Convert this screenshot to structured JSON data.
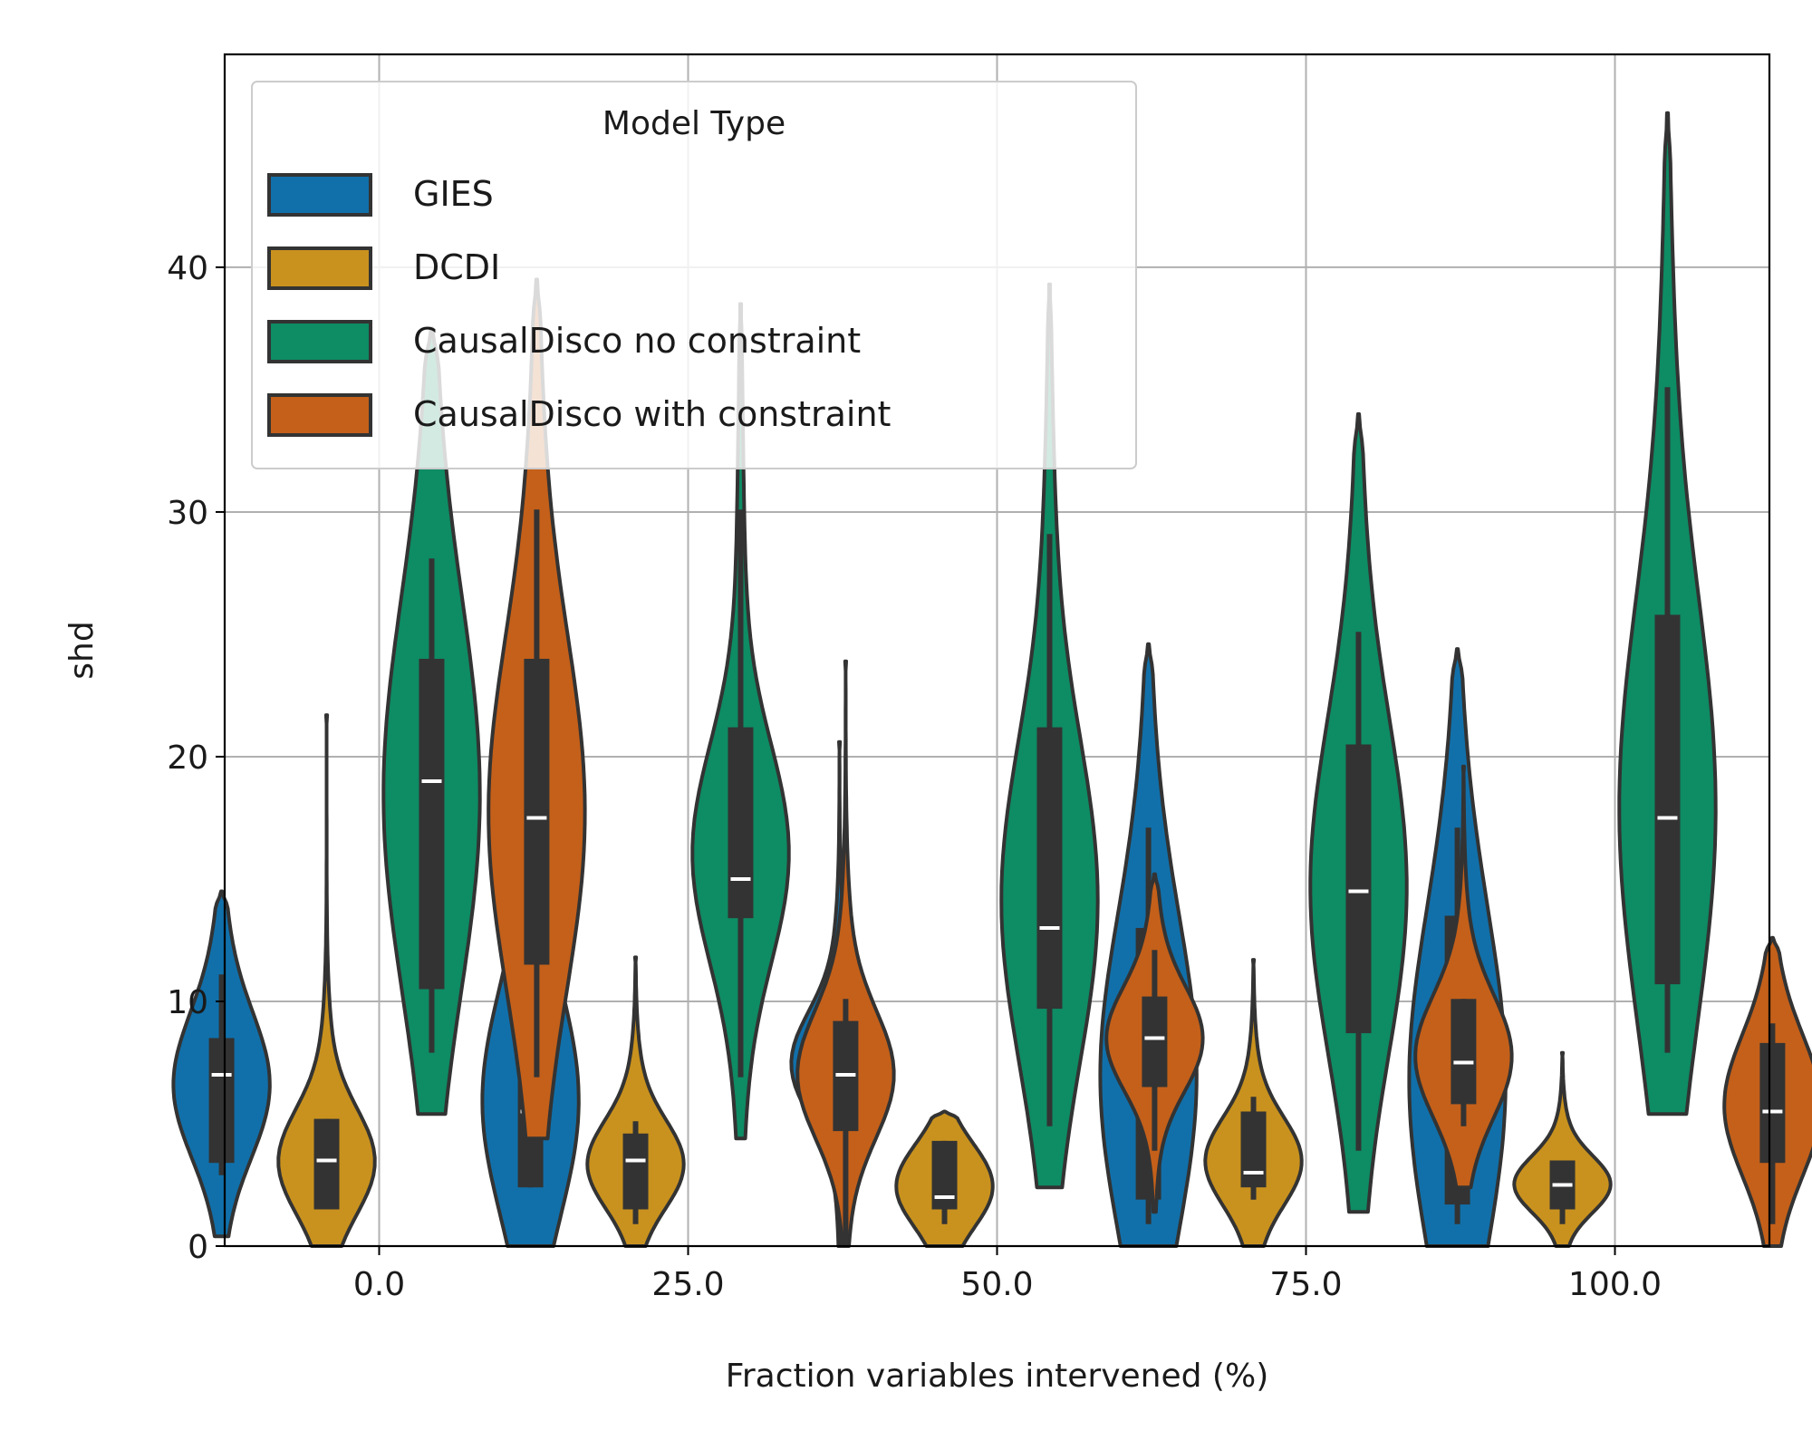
{
  "chart_data": {
    "type": "violin",
    "xlabel": "Fraction variables intervened (%)",
    "ylabel": "shd",
    "categories": [
      "0.0",
      "25.0",
      "50.0",
      "75.0",
      "100.0"
    ],
    "y_ticks": [
      0,
      10,
      20,
      30,
      40
    ],
    "ylim": [
      0,
      48.7
    ],
    "grid": true,
    "legend": {
      "title": "Model Type",
      "placement": "top-left"
    },
    "series": [
      {
        "name": "GIES",
        "color": "#1170aa",
        "stats": [
          {
            "min": 2.9,
            "q1": 3.4,
            "median": 7.0,
            "q3": 8.5,
            "max": 11.1,
            "top": 14.5
          },
          {
            "min": 2.4,
            "q1": 2.4,
            "median": 5.5,
            "q3": 10.5,
            "max": 16.1,
            "top": 21.8
          },
          {
            "min": 1.9,
            "q1": 5.5,
            "median": 7.5,
            "q3": 9.2,
            "max": 9.2,
            "top": 20.6
          },
          {
            "min": 0.9,
            "q1": 1.9,
            "median": 6.5,
            "q3": 13.0,
            "max": 17.1,
            "top": 24.6
          },
          {
            "min": 0.9,
            "q1": 1.7,
            "median": 6.0,
            "q3": 13.5,
            "max": 17.1,
            "top": 24.4
          }
        ]
      },
      {
        "name": "DCDI",
        "color": "#c9921e",
        "stats": [
          {
            "min": 1.5,
            "q1": 1.5,
            "median": 3.5,
            "q3": 5.2,
            "max": 5.2,
            "top": 21.7
          },
          {
            "min": 0.9,
            "q1": 1.5,
            "median": 3.5,
            "q3": 4.6,
            "max": 5.1,
            "top": 11.8
          },
          {
            "min": 0.9,
            "q1": 1.5,
            "median": 2.0,
            "q3": 4.3,
            "max": 4.3,
            "top": 5.5
          },
          {
            "min": 1.9,
            "q1": 2.4,
            "median": 3.0,
            "q3": 5.5,
            "max": 6.1,
            "top": 11.7
          },
          {
            "min": 0.9,
            "q1": 1.5,
            "median": 2.5,
            "q3": 3.5,
            "max": 3.5,
            "top": 7.9
          }
        ]
      },
      {
        "name": "CausalDisco no constraint",
        "color": "#0e8c64",
        "stats": [
          {
            "min": 7.9,
            "q1": 10.5,
            "median": 19.0,
            "q3": 24.0,
            "max": 28.1,
            "top": 37.5
          },
          {
            "min": 6.9,
            "q1": 13.4,
            "median": 15.0,
            "q3": 21.2,
            "max": 30.1,
            "top": 38.5
          },
          {
            "min": 4.9,
            "q1": 9.7,
            "median": 13.0,
            "q3": 21.2,
            "max": 29.1,
            "top": 39.3
          },
          {
            "min": 3.9,
            "q1": 8.7,
            "median": 14.5,
            "q3": 20.5,
            "max": 25.1,
            "top": 34.0
          },
          {
            "min": 7.9,
            "q1": 10.7,
            "median": 17.5,
            "q3": 25.8,
            "max": 35.1,
            "top": 46.3
          }
        ]
      },
      {
        "name": "CausalDisco with constraint",
        "color": "#c4601a",
        "stats": [
          {
            "min": 6.9,
            "q1": 11.5,
            "median": 17.5,
            "q3": 24.0,
            "max": 30.1,
            "top": 39.5
          },
          {
            "min": 0.0,
            "q1": 4.7,
            "median": 7.0,
            "q3": 9.2,
            "max": 10.1,
            "top": 23.9
          },
          {
            "min": 3.9,
            "q1": 6.5,
            "median": 8.5,
            "q3": 10.2,
            "max": 12.1,
            "top": 15.2
          },
          {
            "min": 4.9,
            "q1": 5.8,
            "median": 7.5,
            "q3": 10.1,
            "max": 10.1,
            "top": 19.6
          },
          {
            "min": 0.9,
            "q1": 3.4,
            "median": 5.5,
            "q3": 8.3,
            "max": 9.1,
            "top": 12.6
          }
        ]
      }
    ]
  }
}
